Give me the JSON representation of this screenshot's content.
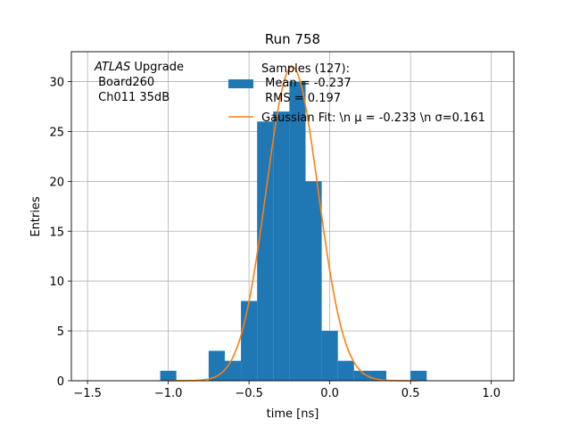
{
  "chart_data": {
    "type": "histogram",
    "title": "Run 758",
    "xlabel": "time [ns]",
    "ylabel": "Entries",
    "xlim": [
      -1.6,
      1.14
    ],
    "ylim": [
      0,
      33
    ],
    "xticks": [
      -1.5,
      -1.0,
      -0.5,
      0.0,
      0.5,
      1.0
    ],
    "xtick_labels": [
      "−1.5",
      "−1.0",
      "−0.5",
      "0.0",
      "0.5",
      "1.0"
    ],
    "yticks": [
      0,
      5,
      10,
      15,
      20,
      25,
      30
    ],
    "ytick_labels": [
      "0",
      "5",
      "10",
      "15",
      "20",
      "25",
      "30"
    ],
    "grid": true,
    "bar_color": "#1f77b4",
    "fit_color": "#ff7f0e",
    "bins": [
      {
        "x0": -1.05,
        "x1": -0.95,
        "count": 1
      },
      {
        "x0": -0.75,
        "x1": -0.65,
        "count": 3
      },
      {
        "x0": -0.65,
        "x1": -0.55,
        "count": 2
      },
      {
        "x0": -0.55,
        "x1": -0.45,
        "count": 8
      },
      {
        "x0": -0.45,
        "x1": -0.35,
        "count": 26
      },
      {
        "x0": -0.35,
        "x1": -0.25,
        "count": 27
      },
      {
        "x0": -0.25,
        "x1": -0.15,
        "count": 30
      },
      {
        "x0": -0.15,
        "x1": -0.05,
        "count": 20
      },
      {
        "x0": -0.05,
        "x1": 0.05,
        "count": 5
      },
      {
        "x0": 0.05,
        "x1": 0.15,
        "count": 2
      },
      {
        "x0": 0.15,
        "x1": 0.25,
        "count": 1
      },
      {
        "x0": 0.25,
        "x1": 0.35,
        "count": 1
      },
      {
        "x0": 0.5,
        "x1": 0.6,
        "count": 1
      }
    ],
    "fit": {
      "mu": -0.233,
      "sigma": 0.161,
      "amplitude": 31.5,
      "x_range": [
        -1.0,
        0.55
      ]
    },
    "annotation": {
      "italic": "ATLAS",
      "line1_rest": " Upgrade",
      "line2": " Board260",
      "line3": " Ch011 35dB"
    },
    "legend": {
      "placement": "top-right",
      "samples_lines": [
        "Samples (127):",
        " Mean = -0.237",
        " RMS = 0.197"
      ],
      "fit_label": "Gaussian Fit: \\n μ = -0.233 \\n σ=0.161"
    }
  }
}
